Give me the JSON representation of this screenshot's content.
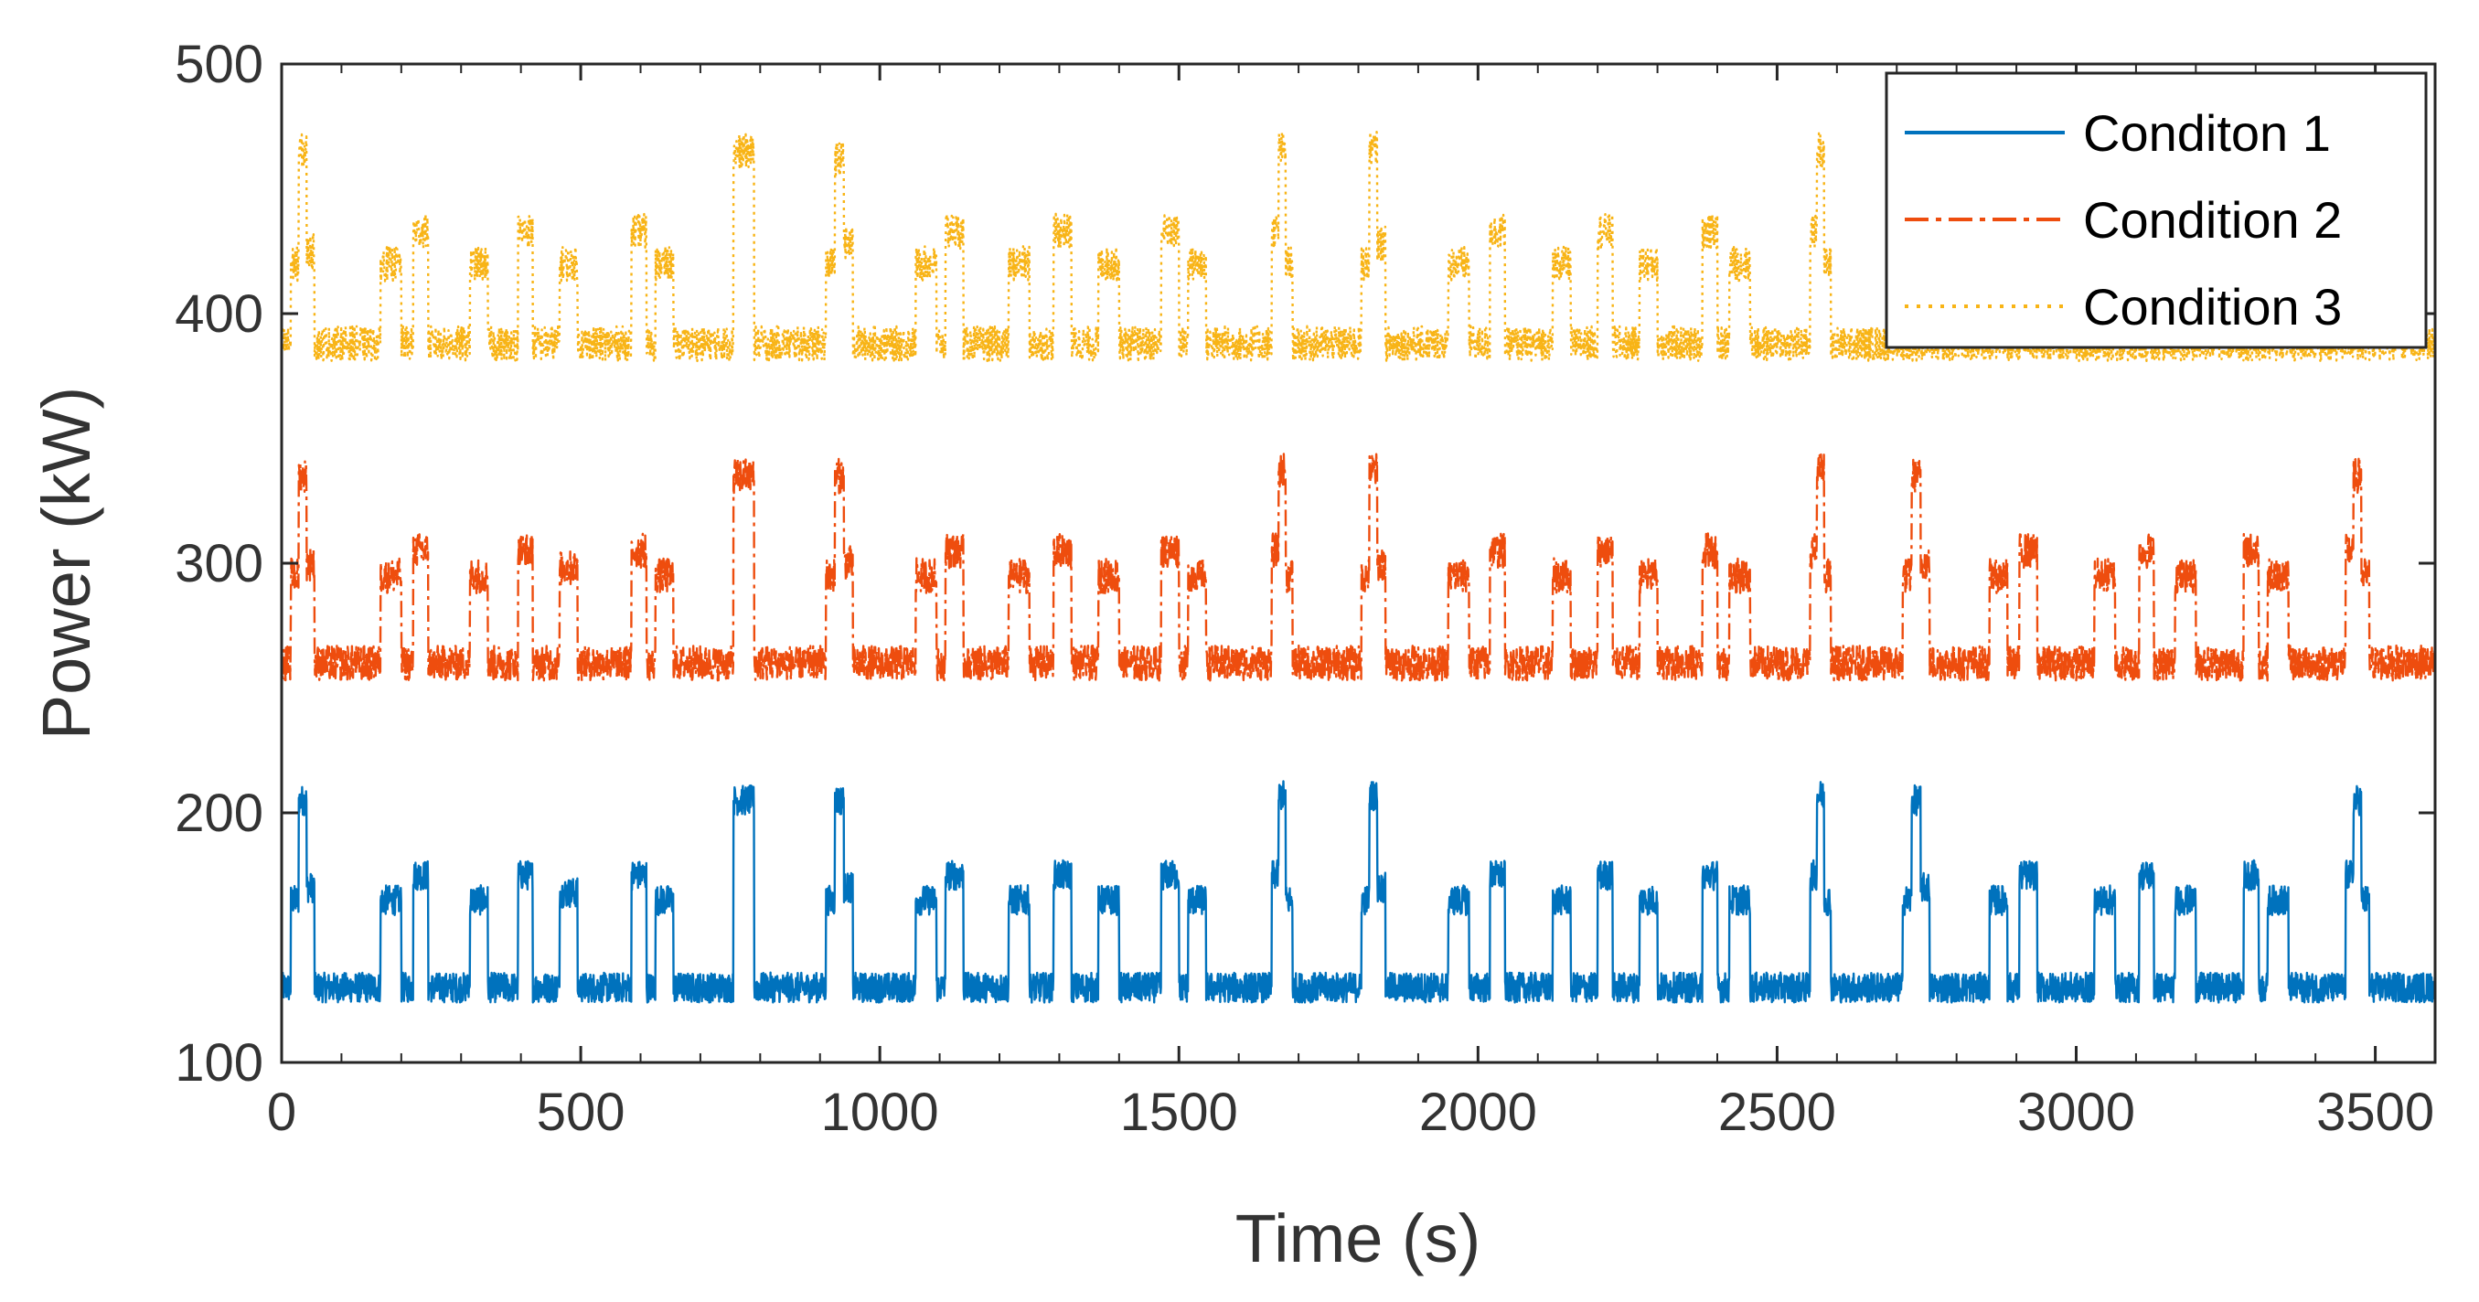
{
  "chart_data": {
    "type": "line",
    "title": "",
    "xlabel": "Time (s)",
    "ylabel": "Power (kW)",
    "xlim": [
      0,
      3600
    ],
    "ylim": [
      100,
      500
    ],
    "xticks": [
      "0",
      "500",
      "1000",
      "1500",
      "2000",
      "2500",
      "3000",
      "3500"
    ],
    "yticks": [
      "100",
      "200",
      "300",
      "400",
      "500"
    ],
    "grid": false,
    "legend_position": "top-right",
    "series": [
      {
        "name": "Conditon 1",
        "color": "#0072BD",
        "line_style": "solid",
        "base": 130,
        "noise": 6,
        "events": [
          {
            "t": [
              15,
              55
            ],
            "levels": [
              165,
              205,
              170
            ]
          },
          {
            "t": [
              165,
              200
            ],
            "levels": [
              165
            ]
          },
          {
            "t": [
              220,
              245
            ],
            "levels": [
              175
            ]
          },
          {
            "t": [
              315,
              345
            ],
            "levels": [
              165
            ]
          },
          {
            "t": [
              395,
              420
            ],
            "levels": [
              175
            ]
          },
          {
            "t": [
              465,
              495
            ],
            "levels": [
              168
            ]
          },
          {
            "t": [
              585,
              610
            ],
            "levels": [
              175
            ]
          },
          {
            "t": [
              625,
              655
            ],
            "levels": [
              165
            ]
          },
          {
            "t": [
              755,
              790
            ],
            "levels": [
              205
            ]
          },
          {
            "t": [
              910,
              955
            ],
            "levels": [
              165,
              205,
              170
            ]
          },
          {
            "t": [
              1060,
              1095
            ],
            "levels": [
              165
            ]
          },
          {
            "t": [
              1110,
              1140
            ],
            "levels": [
              175
            ]
          },
          {
            "t": [
              1215,
              1250
            ],
            "levels": [
              165
            ]
          },
          {
            "t": [
              1290,
              1320
            ],
            "levels": [
              175
            ]
          },
          {
            "t": [
              1365,
              1400
            ],
            "levels": [
              165
            ]
          },
          {
            "t": [
              1470,
              1500
            ],
            "levels": [
              175
            ]
          },
          {
            "t": [
              1515,
              1545
            ],
            "levels": [
              165
            ]
          },
          {
            "t": [
              1655,
              1690
            ],
            "levels": [
              175,
              207,
              165
            ]
          },
          {
            "t": [
              1805,
              1845
            ],
            "levels": [
              165,
              207,
              170
            ]
          },
          {
            "t": [
              1950,
              1985
            ],
            "levels": [
              165
            ]
          },
          {
            "t": [
              2020,
              2045
            ],
            "levels": [
              175
            ]
          },
          {
            "t": [
              2125,
              2155
            ],
            "levels": [
              165
            ]
          },
          {
            "t": [
              2200,
              2225
            ],
            "levels": [
              175
            ]
          },
          {
            "t": [
              2270,
              2300
            ],
            "levels": [
              165
            ]
          },
          {
            "t": [
              2375,
              2400
            ],
            "levels": [
              175
            ]
          },
          {
            "t": [
              2420,
              2455
            ],
            "levels": [
              165
            ]
          },
          {
            "t": [
              2555,
              2590
            ],
            "levels": [
              175,
              207,
              165
            ]
          },
          {
            "t": [
              2710,
              2755
            ],
            "levels": [
              165,
              205,
              170
            ]
          },
          {
            "t": [
              2855,
              2885
            ],
            "levels": [
              165
            ]
          },
          {
            "t": [
              2905,
              2935
            ],
            "levels": [
              175
            ]
          },
          {
            "t": [
              3030,
              3065
            ],
            "levels": [
              165
            ]
          },
          {
            "t": [
              3105,
              3130
            ],
            "levels": [
              175
            ]
          },
          {
            "t": [
              3165,
              3200
            ],
            "levels": [
              165
            ]
          },
          {
            "t": [
              3280,
              3305
            ],
            "levels": [
              175
            ]
          },
          {
            "t": [
              3320,
              3355
            ],
            "levels": [
              165
            ]
          },
          {
            "t": [
              3450,
              3490
            ],
            "levels": [
              175,
              205,
              165
            ]
          }
        ]
      },
      {
        "name": "Condition 2",
        "color": "#EE4D0E",
        "line_style": "dash-dot",
        "base": 260,
        "noise": 7,
        "events": [
          {
            "t": [
              15,
              55
            ],
            "levels": [
              295,
              335,
              300
            ]
          },
          {
            "t": [
              165,
              200
            ],
            "levels": [
              295
            ]
          },
          {
            "t": [
              220,
              245
            ],
            "levels": [
              305
            ]
          },
          {
            "t": [
              315,
              345
            ],
            "levels": [
              295
            ]
          },
          {
            "t": [
              395,
              420
            ],
            "levels": [
              305
            ]
          },
          {
            "t": [
              465,
              495
            ],
            "levels": [
              298
            ]
          },
          {
            "t": [
              585,
              610
            ],
            "levels": [
              305
            ]
          },
          {
            "t": [
              625,
              655
            ],
            "levels": [
              295
            ]
          },
          {
            "t": [
              755,
              790
            ],
            "levels": [
              335
            ]
          },
          {
            "t": [
              910,
              955
            ],
            "levels": [
              295,
              335,
              300
            ]
          },
          {
            "t": [
              1060,
              1095
            ],
            "levels": [
              295
            ]
          },
          {
            "t": [
              1110,
              1140
            ],
            "levels": [
              305
            ]
          },
          {
            "t": [
              1215,
              1250
            ],
            "levels": [
              295
            ]
          },
          {
            "t": [
              1290,
              1320
            ],
            "levels": [
              305
            ]
          },
          {
            "t": [
              1365,
              1400
            ],
            "levels": [
              295
            ]
          },
          {
            "t": [
              1470,
              1500
            ],
            "levels": [
              305
            ]
          },
          {
            "t": [
              1515,
              1545
            ],
            "levels": [
              295
            ]
          },
          {
            "t": [
              1655,
              1690
            ],
            "levels": [
              305,
              337,
              295
            ]
          },
          {
            "t": [
              1805,
              1845
            ],
            "levels": [
              295,
              337,
              300
            ]
          },
          {
            "t": [
              1950,
              1985
            ],
            "levels": [
              295
            ]
          },
          {
            "t": [
              2020,
              2045
            ],
            "levels": [
              305
            ]
          },
          {
            "t": [
              2125,
              2155
            ],
            "levels": [
              295
            ]
          },
          {
            "t": [
              2200,
              2225
            ],
            "levels": [
              305
            ]
          },
          {
            "t": [
              2270,
              2300
            ],
            "levels": [
              295
            ]
          },
          {
            "t": [
              2375,
              2400
            ],
            "levels": [
              305
            ]
          },
          {
            "t": [
              2420,
              2455
            ],
            "levels": [
              295
            ]
          },
          {
            "t": [
              2555,
              2590
            ],
            "levels": [
              305,
              337,
              295
            ]
          },
          {
            "t": [
              2710,
              2755
            ],
            "levels": [
              295,
              335,
              300
            ]
          },
          {
            "t": [
              2855,
              2885
            ],
            "levels": [
              295
            ]
          },
          {
            "t": [
              2905,
              2935
            ],
            "levels": [
              305
            ]
          },
          {
            "t": [
              3030,
              3065
            ],
            "levels": [
              295
            ]
          },
          {
            "t": [
              3105,
              3130
            ],
            "levels": [
              305
            ]
          },
          {
            "t": [
              3165,
              3200
            ],
            "levels": [
              295
            ]
          },
          {
            "t": [
              3280,
              3305
            ],
            "levels": [
              305
            ]
          },
          {
            "t": [
              3320,
              3355
            ],
            "levels": [
              295
            ]
          },
          {
            "t": [
              3450,
              3490
            ],
            "levels": [
              305,
              335,
              295
            ]
          }
        ]
      },
      {
        "name": "Condition 3",
        "color": "#F8B416",
        "line_style": "dotted",
        "base": 388,
        "noise": 7,
        "events": [
          {
            "t": [
              15,
              55
            ],
            "levels": [
              420,
              465,
              425
            ]
          },
          {
            "t": [
              165,
              200
            ],
            "levels": [
              420
            ]
          },
          {
            "t": [
              220,
              245
            ],
            "levels": [
              433
            ]
          },
          {
            "t": [
              315,
              345
            ],
            "levels": [
              420
            ]
          },
          {
            "t": [
              395,
              420
            ],
            "levels": [
              433
            ]
          },
          {
            "t": [
              465,
              495
            ],
            "levels": [
              420
            ]
          },
          {
            "t": [
              585,
              610
            ],
            "levels": [
              433
            ]
          },
          {
            "t": [
              625,
              655
            ],
            "levels": [
              420
            ]
          },
          {
            "t": [
              755,
              790
            ],
            "levels": [
              465
            ]
          },
          {
            "t": [
              910,
              955
            ],
            "levels": [
              420,
              462,
              428
            ]
          },
          {
            "t": [
              1060,
              1095
            ],
            "levels": [
              420
            ]
          },
          {
            "t": [
              1110,
              1140
            ],
            "levels": [
              433
            ]
          },
          {
            "t": [
              1215,
              1250
            ],
            "levels": [
              420
            ]
          },
          {
            "t": [
              1290,
              1320
            ],
            "levels": [
              433
            ]
          },
          {
            "t": [
              1365,
              1400
            ],
            "levels": [
              420
            ]
          },
          {
            "t": [
              1470,
              1500
            ],
            "levels": [
              433
            ]
          },
          {
            "t": [
              1515,
              1545
            ],
            "levels": [
              420
            ]
          },
          {
            "t": [
              1655,
              1690
            ],
            "levels": [
              433,
              466,
              420
            ]
          },
          {
            "t": [
              1805,
              1845
            ],
            "levels": [
              420,
              466,
              428
            ]
          },
          {
            "t": [
              1950,
              1985
            ],
            "levels": [
              420
            ]
          },
          {
            "t": [
              2020,
              2045
            ],
            "levels": [
              433
            ]
          },
          {
            "t": [
              2125,
              2155
            ],
            "levels": [
              420
            ]
          },
          {
            "t": [
              2200,
              2225
            ],
            "levels": [
              433
            ]
          },
          {
            "t": [
              2270,
              2300
            ],
            "levels": [
              420
            ]
          },
          {
            "t": [
              2375,
              2400
            ],
            "levels": [
              433
            ]
          },
          {
            "t": [
              2420,
              2455
            ],
            "levels": [
              420
            ]
          },
          {
            "t": [
              2555,
              2590
            ],
            "levels": [
              433,
              466,
              420
            ]
          }
        ]
      }
    ]
  }
}
